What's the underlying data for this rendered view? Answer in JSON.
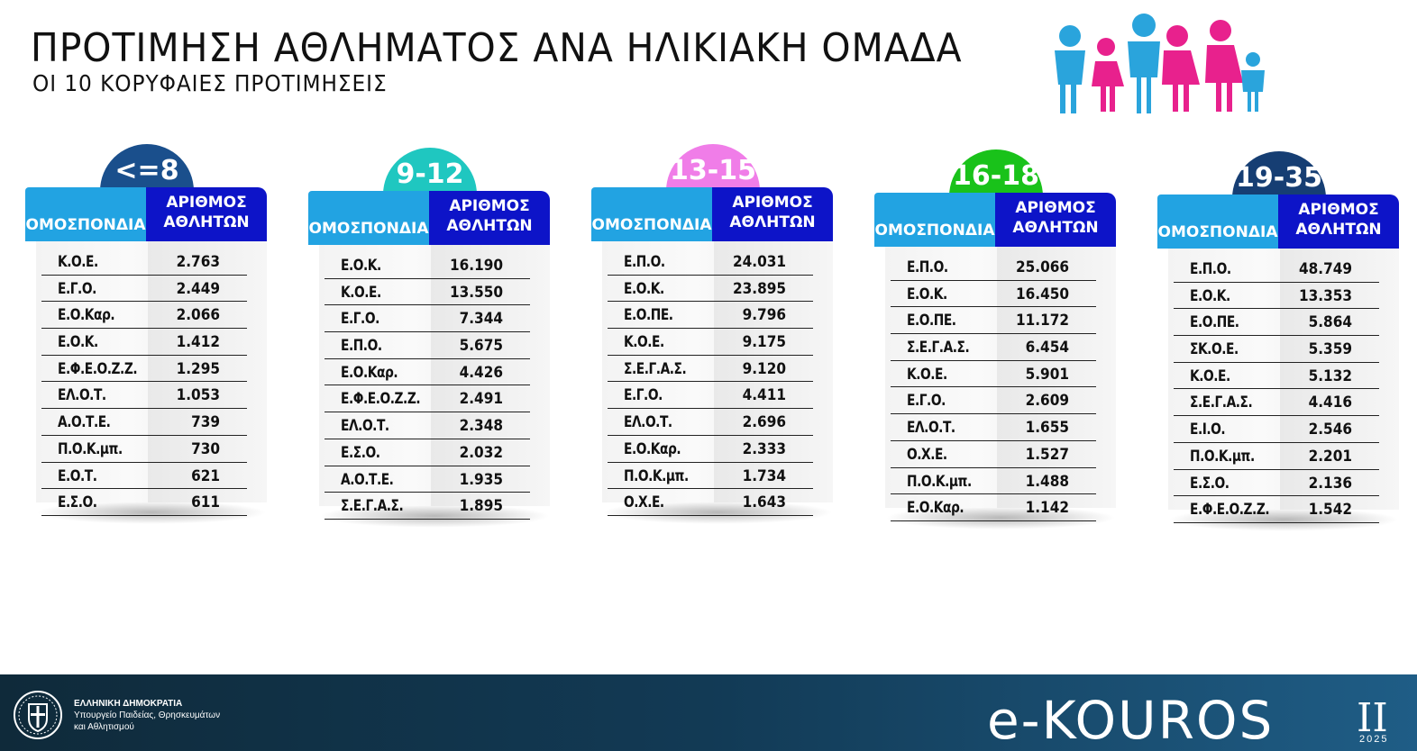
{
  "header": {
    "title": "ΠΡΟΤΙΜΗΣΗ ΑΘΛΗΜΑΤΟΣ ΑΝΑ ΗΛΙΚΙΑΚΗ ΟΜΑΔΑ",
    "subtitle": "ΟΙ 10 ΚΟΡΥΦΑΙΕΣ ΠΡΟΤΙΜΗΣΕΙΣ"
  },
  "column_headers": {
    "federation": "ΟΜΟΣΠΟΝΔΙΑ",
    "athletes_line1": "ΑΡΙΘΜΟΣ",
    "athletes_line2": "ΑΘΛΗΤΩΝ"
  },
  "groups": [
    {
      "label": "<=8",
      "color": "#1a4f8c",
      "rows": [
        {
          "fed": "Κ.Ο.Ε.",
          "count": "2.763"
        },
        {
          "fed": "Ε.Γ.Ο.",
          "count": "2.449"
        },
        {
          "fed": "Ε.Ο.Καρ.",
          "count": "2.066"
        },
        {
          "fed": "Ε.Ο.Κ.",
          "count": "1.412"
        },
        {
          "fed": "Ε.Φ.Ε.Ο.Ζ.Ζ.",
          "count": "1.295"
        },
        {
          "fed": "ΕΛ.Ο.Τ.",
          "count": "1.053"
        },
        {
          "fed": "Α.Ο.Τ.Ε.",
          "count": "739"
        },
        {
          "fed": "Π.Ο.Κ.μπ.",
          "count": "730"
        },
        {
          "fed": "Ε.Ο.Τ.",
          "count": "621"
        },
        {
          "fed": "Ε.Σ.Ο.",
          "count": "611"
        }
      ]
    },
    {
      "label": "9-12",
      "color": "#1fc7c0",
      "rows": [
        {
          "fed": "Ε.Ο.Κ.",
          "count": "16.190"
        },
        {
          "fed": "Κ.Ο.Ε.",
          "count": "13.550"
        },
        {
          "fed": "Ε.Γ.Ο.",
          "count": "7.344"
        },
        {
          "fed": "Ε.Π.Ο.",
          "count": "5.675"
        },
        {
          "fed": "Ε.Ο.Καρ.",
          "count": "4.426"
        },
        {
          "fed": "Ε.Φ.Ε.Ο.Ζ.Ζ.",
          "count": "2.491"
        },
        {
          "fed": "ΕΛ.Ο.Τ.",
          "count": "2.348"
        },
        {
          "fed": "Ε.Σ.Ο.",
          "count": "2.032"
        },
        {
          "fed": "Α.Ο.Τ.Ε.",
          "count": "1.935"
        },
        {
          "fed": "Σ.Ε.Γ.Α.Σ.",
          "count": "1.895"
        }
      ]
    },
    {
      "label": "13-15",
      "color": "#f07de8",
      "rows": [
        {
          "fed": "Ε.Π.Ο.",
          "count": "24.031"
        },
        {
          "fed": "Ε.Ο.Κ.",
          "count": "23.895"
        },
        {
          "fed": "Ε.Ο.ΠΕ.",
          "count": "9.796"
        },
        {
          "fed": "Κ.Ο.Ε.",
          "count": "9.175"
        },
        {
          "fed": "Σ.Ε.Γ.Α.Σ.",
          "count": "9.120"
        },
        {
          "fed": "Ε.Γ.Ο.",
          "count": "4.411"
        },
        {
          "fed": "ΕΛ.Ο.Τ.",
          "count": "2.696"
        },
        {
          "fed": "Ε.Ο.Καρ.",
          "count": "2.333"
        },
        {
          "fed": "Π.Ο.Κ.μπ.",
          "count": "1.734"
        },
        {
          "fed": "Ο.Χ.Ε.",
          "count": "1.643"
        }
      ]
    },
    {
      "label": "16-18",
      "color": "#19c21a",
      "rows": [
        {
          "fed": "Ε.Π.Ο.",
          "count": "25.066"
        },
        {
          "fed": "Ε.Ο.Κ.",
          "count": "16.450"
        },
        {
          "fed": "Ε.Ο.ΠΕ.",
          "count": "11.172"
        },
        {
          "fed": "Σ.Ε.Γ.Α.Σ.",
          "count": "6.454"
        },
        {
          "fed": "Κ.Ο.Ε.",
          "count": "5.901"
        },
        {
          "fed": "Ε.Γ.Ο.",
          "count": "2.609"
        },
        {
          "fed": "ΕΛ.Ο.Τ.",
          "count": "1.655"
        },
        {
          "fed": "Ο.Χ.Ε.",
          "count": "1.527"
        },
        {
          "fed": "Π.Ο.Κ.μπ.",
          "count": "1.488"
        },
        {
          "fed": "Ε.Ο.Καρ.",
          "count": "1.142"
        }
      ]
    },
    {
      "label": "19-35",
      "color": "#163e73",
      "rows": [
        {
          "fed": "Ε.Π.Ο.",
          "count": "48.749"
        },
        {
          "fed": "Ε.Ο.Κ.",
          "count": "13.353"
        },
        {
          "fed": "Ε.Ο.ΠΕ.",
          "count": "5.864"
        },
        {
          "fed": "ΣΚ.Ο.Ε.",
          "count": "5.359"
        },
        {
          "fed": "Κ.Ο.Ε.",
          "count": "5.132"
        },
        {
          "fed": "Σ.Ε.Γ.Α.Σ.",
          "count": "4.416"
        },
        {
          "fed": "Ε.Ι.Ο.",
          "count": "2.546"
        },
        {
          "fed": "Π.Ο.Κ.μπ.",
          "count": "2.201"
        },
        {
          "fed": "Ε.Σ.Ο.",
          "count": "2.136"
        },
        {
          "fed": "Ε.Φ.Ε.Ο.Ζ.Ζ.",
          "count": "1.542"
        }
      ]
    }
  ],
  "footer": {
    "gov_line1": "ΕΛΛΗΝΙΚΗ ΔΗΜΟΚΡΑΤΙΑ",
    "gov_line2": "Υπουργείο Παιδείας, Θρησκευμάτων",
    "gov_line3": "και Αθλητισμού",
    "logo_text": "e-KOUROS",
    "logo_roman": "II",
    "logo_year": "2025"
  },
  "icons": {
    "family": "family-figures-icon",
    "seal": "greek-coat-of-arms-icon"
  },
  "colors": {
    "federation_header": "#22a3e2",
    "athletes_header": "#0d14c8",
    "footer": "#123a55"
  }
}
